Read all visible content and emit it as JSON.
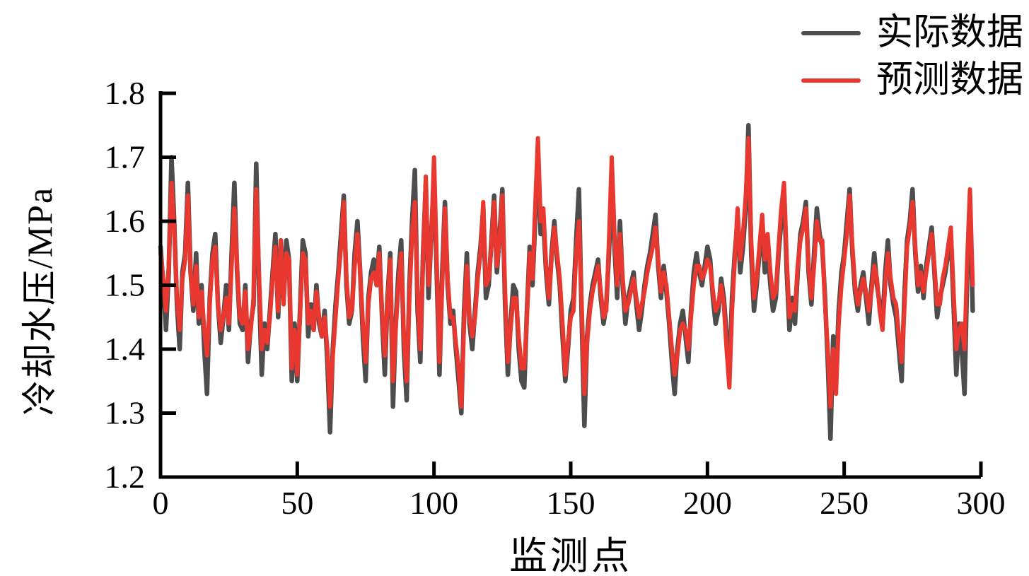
{
  "figure": {
    "background": "#ffffff",
    "text_color": "#000000"
  },
  "legend": {
    "items": [
      {
        "label": "实际数据",
        "color": "#4d4d4d"
      },
      {
        "label": "预测数据",
        "color": "#e8382f"
      }
    ]
  },
  "chart_data": {
    "type": "line",
    "title": "",
    "xlabel": "监测点",
    "ylabel": "冷却水压/MPa",
    "xlim": [
      0,
      300
    ],
    "ylim": [
      1.2,
      1.8
    ],
    "x_ticks": [
      0,
      50,
      100,
      150,
      200,
      250,
      300
    ],
    "y_ticks": [
      1.2,
      1.3,
      1.4,
      1.5,
      1.6,
      1.7,
      1.8
    ],
    "grid": false,
    "legend_position": "top-right-outside",
    "x_start": 0,
    "x_step": 1,
    "series": [
      {
        "name": "实际数据",
        "color": "#4d4d4d",
        "values": [
          1.56,
          1.5,
          1.43,
          1.52,
          1.7,
          1.6,
          1.47,
          1.4,
          1.52,
          1.55,
          1.66,
          1.52,
          1.46,
          1.55,
          1.44,
          1.5,
          1.4,
          1.33,
          1.48,
          1.55,
          1.58,
          1.47,
          1.41,
          1.45,
          1.5,
          1.43,
          1.55,
          1.66,
          1.52,
          1.44,
          1.43,
          1.5,
          1.38,
          1.44,
          1.47,
          1.69,
          1.5,
          1.36,
          1.44,
          1.4,
          1.46,
          1.52,
          1.58,
          1.45,
          1.57,
          1.48,
          1.57,
          1.54,
          1.35,
          1.44,
          1.35,
          1.46,
          1.57,
          1.55,
          1.42,
          1.47,
          1.43,
          1.5,
          1.44,
          1.42,
          1.46,
          1.38,
          1.27,
          1.4,
          1.47,
          1.52,
          1.58,
          1.64,
          1.5,
          1.44,
          1.46,
          1.55,
          1.6,
          1.52,
          1.42,
          1.35,
          1.48,
          1.52,
          1.54,
          1.5,
          1.56,
          1.45,
          1.36,
          1.48,
          1.55,
          1.31,
          1.44,
          1.52,
          1.57,
          1.4,
          1.32,
          1.5,
          1.6,
          1.68,
          1.46,
          1.38,
          1.55,
          1.66,
          1.48,
          1.58,
          1.67,
          1.52,
          1.36,
          1.52,
          1.63,
          1.5,
          1.44,
          1.46,
          1.4,
          1.35,
          1.3,
          1.46,
          1.55,
          1.44,
          1.4,
          1.46,
          1.52,
          1.56,
          1.62,
          1.48,
          1.5,
          1.57,
          1.64,
          1.52,
          1.58,
          1.65,
          1.47,
          1.36,
          1.44,
          1.5,
          1.49,
          1.4,
          1.35,
          1.34,
          1.46,
          1.56,
          1.5,
          1.6,
          1.7,
          1.58,
          1.6,
          1.52,
          1.47,
          1.55,
          1.6,
          1.54,
          1.5,
          1.42,
          1.35,
          1.4,
          1.46,
          1.48,
          1.57,
          1.65,
          1.45,
          1.28,
          1.42,
          1.47,
          1.5,
          1.52,
          1.54,
          1.48,
          1.44,
          1.47,
          1.55,
          1.67,
          1.56,
          1.48,
          1.6,
          1.5,
          1.44,
          1.48,
          1.5,
          1.52,
          1.47,
          1.43,
          1.46,
          1.5,
          1.53,
          1.55,
          1.58,
          1.61,
          1.53,
          1.48,
          1.53,
          1.49,
          1.44,
          1.38,
          1.33,
          1.4,
          1.44,
          1.46,
          1.42,
          1.38,
          1.46,
          1.52,
          1.55,
          1.52,
          1.5,
          1.53,
          1.56,
          1.54,
          1.48,
          1.44,
          1.46,
          1.51,
          1.48,
          1.42,
          1.36,
          1.48,
          1.55,
          1.6,
          1.52,
          1.56,
          1.62,
          1.75,
          1.55,
          1.46,
          1.5,
          1.55,
          1.59,
          1.52,
          1.56,
          1.5,
          1.46,
          1.48,
          1.55,
          1.6,
          1.65,
          1.52,
          1.43,
          1.48,
          1.44,
          1.52,
          1.58,
          1.6,
          1.63,
          1.52,
          1.47,
          1.55,
          1.62,
          1.58,
          1.56,
          1.48,
          1.38,
          1.26,
          1.42,
          1.35,
          1.46,
          1.52,
          1.55,
          1.6,
          1.65,
          1.55,
          1.49,
          1.46,
          1.5,
          1.52,
          1.48,
          1.44,
          1.5,
          1.55,
          1.5,
          1.47,
          1.44,
          1.52,
          1.57,
          1.5,
          1.47,
          1.45,
          1.4,
          1.35,
          1.48,
          1.57,
          1.6,
          1.65,
          1.55,
          1.49,
          1.53,
          1.48,
          1.53,
          1.56,
          1.59,
          1.52,
          1.45,
          1.48,
          1.5,
          1.52,
          1.55,
          1.58,
          1.47,
          1.36,
          1.44,
          1.4,
          1.33,
          1.52,
          1.64,
          1.46
        ]
      },
      {
        "name": "预测数据",
        "color": "#e8382f",
        "values": [
          1.55,
          1.51,
          1.46,
          1.53,
          1.66,
          1.59,
          1.48,
          1.43,
          1.51,
          1.54,
          1.64,
          1.52,
          1.47,
          1.53,
          1.45,
          1.49,
          1.43,
          1.39,
          1.47,
          1.54,
          1.56,
          1.47,
          1.43,
          1.45,
          1.48,
          1.44,
          1.53,
          1.62,
          1.53,
          1.45,
          1.44,
          1.49,
          1.4,
          1.43,
          1.48,
          1.65,
          1.52,
          1.4,
          1.43,
          1.41,
          1.45,
          1.51,
          1.56,
          1.46,
          1.57,
          1.47,
          1.55,
          1.54,
          1.37,
          1.43,
          1.36,
          1.45,
          1.55,
          1.54,
          1.44,
          1.46,
          1.43,
          1.49,
          1.45,
          1.42,
          1.45,
          1.4,
          1.31,
          1.39,
          1.45,
          1.51,
          1.56,
          1.63,
          1.51,
          1.45,
          1.46,
          1.53,
          1.58,
          1.52,
          1.44,
          1.38,
          1.47,
          1.51,
          1.52,
          1.5,
          1.55,
          1.46,
          1.39,
          1.47,
          1.54,
          1.35,
          1.43,
          1.5,
          1.55,
          1.42,
          1.35,
          1.48,
          1.58,
          1.63,
          1.48,
          1.4,
          1.54,
          1.67,
          1.5,
          1.57,
          1.7,
          1.54,
          1.38,
          1.5,
          1.62,
          1.51,
          1.45,
          1.45,
          1.41,
          1.37,
          1.31,
          1.44,
          1.53,
          1.45,
          1.42,
          1.45,
          1.51,
          1.55,
          1.63,
          1.5,
          1.51,
          1.56,
          1.63,
          1.53,
          1.57,
          1.64,
          1.49,
          1.38,
          1.43,
          1.48,
          1.48,
          1.42,
          1.37,
          1.37,
          1.45,
          1.55,
          1.51,
          1.62,
          1.73,
          1.6,
          1.62,
          1.53,
          1.48,
          1.54,
          1.59,
          1.55,
          1.51,
          1.44,
          1.36,
          1.41,
          1.45,
          1.46,
          1.55,
          1.6,
          1.47,
          1.33,
          1.41,
          1.46,
          1.49,
          1.51,
          1.53,
          1.49,
          1.45,
          1.46,
          1.57,
          1.7,
          1.58,
          1.5,
          1.58,
          1.51,
          1.46,
          1.47,
          1.49,
          1.51,
          1.48,
          1.45,
          1.47,
          1.49,
          1.52,
          1.54,
          1.56,
          1.59,
          1.54,
          1.49,
          1.52,
          1.5,
          1.45,
          1.4,
          1.36,
          1.39,
          1.43,
          1.44,
          1.43,
          1.4,
          1.45,
          1.5,
          1.53,
          1.53,
          1.51,
          1.52,
          1.54,
          1.53,
          1.49,
          1.46,
          1.47,
          1.5,
          1.47,
          1.4,
          1.34,
          1.46,
          1.54,
          1.62,
          1.54,
          1.58,
          1.64,
          1.73,
          1.57,
          1.48,
          1.51,
          1.56,
          1.61,
          1.54,
          1.58,
          1.52,
          1.48,
          1.49,
          1.56,
          1.62,
          1.66,
          1.54,
          1.45,
          1.47,
          1.46,
          1.53,
          1.57,
          1.59,
          1.62,
          1.53,
          1.48,
          1.53,
          1.6,
          1.57,
          1.57,
          1.47,
          1.4,
          1.31,
          1.4,
          1.33,
          1.44,
          1.5,
          1.54,
          1.58,
          1.64,
          1.56,
          1.5,
          1.47,
          1.49,
          1.51,
          1.49,
          1.46,
          1.49,
          1.53,
          1.51,
          1.46,
          1.43,
          1.5,
          1.55,
          1.51,
          1.48,
          1.47,
          1.42,
          1.38,
          1.46,
          1.56,
          1.59,
          1.63,
          1.56,
          1.5,
          1.52,
          1.49,
          1.52,
          1.55,
          1.58,
          1.53,
          1.47,
          1.47,
          1.51,
          1.53,
          1.56,
          1.59,
          1.49,
          1.4,
          1.43,
          1.44,
          1.4,
          1.54,
          1.65,
          1.5
        ]
      }
    ]
  }
}
